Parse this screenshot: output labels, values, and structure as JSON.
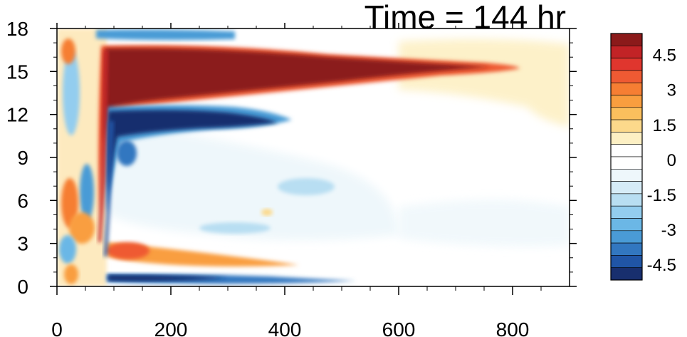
{
  "chart_data": {
    "type": "heatmap",
    "title": "Time = 144 hr",
    "xlabel": "",
    "ylabel": "",
    "xlim": [
      0,
      900
    ],
    "ylim": [
      0,
      18
    ],
    "x_ticks": [
      "0",
      "200",
      "400",
      "600",
      "800"
    ],
    "y_ticks": [
      "0",
      "3",
      "6",
      "9",
      "12",
      "15",
      "18"
    ],
    "colorbar": {
      "labels": [
        "4.5",
        "3",
        "1.5",
        "0",
        "-1.5",
        "-3",
        "-4.5"
      ],
      "colors": [
        "#8b1a1a",
        "#c22326",
        "#e0362e",
        "#ef5a33",
        "#f67e33",
        "#f99e3f",
        "#fbbf5d",
        "#fcd98b",
        "#fdf0c4",
        "#ffffff",
        "#ffffff",
        "#eef7fb",
        "#d6ecf7",
        "#b8def2",
        "#93cdef",
        "#6bb7e6",
        "#4a9bd6",
        "#3277c0",
        "#2055a6",
        "#182f6e"
      ]
    },
    "features": [
      {
        "name": "upper positive band",
        "sign": "positive",
        "x_range": [
          80,
          700
        ],
        "y_range": [
          13,
          16.5
        ],
        "peak": 5.5
      },
      {
        "name": "negative band below jet",
        "sign": "negative",
        "x_range": [
          80,
          380
        ],
        "y_range": [
          10.5,
          12.5
        ],
        "peak": -5.5
      },
      {
        "name": "lower negative band",
        "sign": "negative",
        "x_range": [
          90,
          500
        ],
        "y_range": [
          0,
          0.8
        ],
        "peak": -5
      }
    ]
  }
}
